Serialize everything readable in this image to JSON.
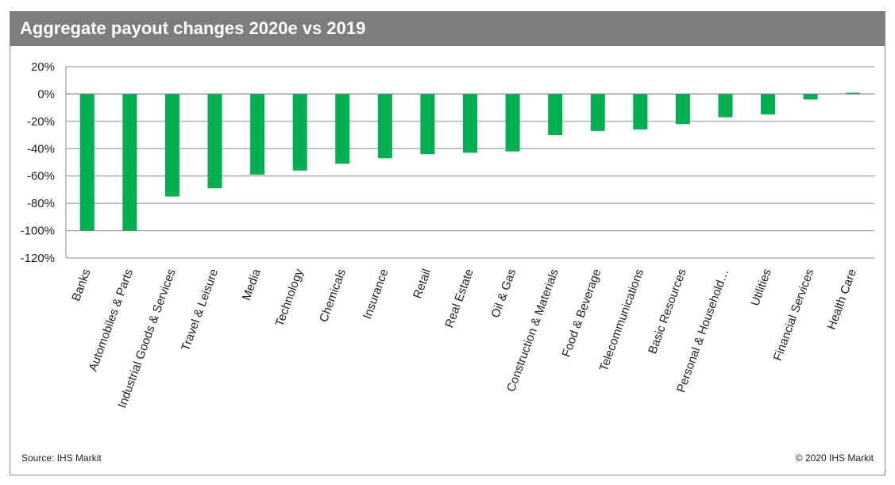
{
  "header": {
    "title": "Aggregate payout changes 2020e vs 2019"
  },
  "footer": {
    "source": "Source: IHS Markit",
    "copyright": "© 2020 IHS Markit"
  },
  "colors": {
    "bar": "#00b050",
    "title_bar": "#7d7d7d",
    "gridline": "#8c8c8c"
  },
  "chart_data": {
    "type": "bar",
    "title": "Aggregate payout changes 2020e vs 2019",
    "xlabel": "",
    "ylabel": "",
    "ylim": [
      -120,
      20
    ],
    "y_ticks": [
      20,
      0,
      -20,
      -40,
      -60,
      -80,
      -100,
      -120
    ],
    "y_tick_labels": [
      "20%",
      "0%",
      "-20%",
      "-40%",
      "-60%",
      "-80%",
      "-100%",
      "-120%"
    ],
    "grid": true,
    "categories": [
      "Banks",
      "Automobiles & Parts",
      "Industrial Goods & Services",
      "Travel & Leisure",
      "Media",
      "Technology",
      "Chemicals",
      "Insurance",
      "Retail",
      "Real Estate",
      "Oil & Gas",
      "Construction & Materials",
      "Food & Beverage",
      "Telecommunications",
      "Basic Resources",
      "Personal & Household…",
      "Utilities",
      "Financial Services",
      "Health Care"
    ],
    "values": [
      -100,
      -100,
      -75,
      -69,
      -59,
      -56,
      -51,
      -47,
      -44,
      -43,
      -42,
      -30,
      -27,
      -26,
      -22,
      -17,
      -15,
      -4,
      1
    ]
  }
}
